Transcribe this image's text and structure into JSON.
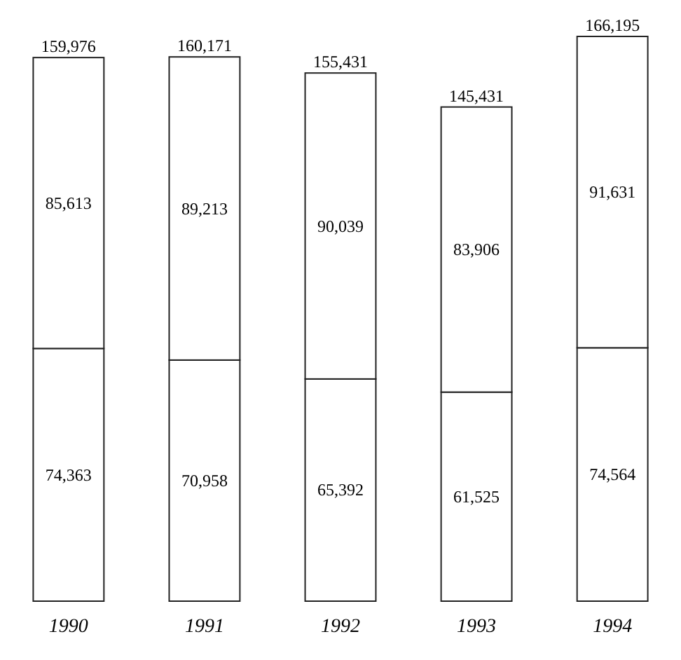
{
  "chart_data": {
    "type": "bar",
    "stacked": true,
    "categories": [
      "1990",
      "1991",
      "1992",
      "1993",
      "1994"
    ],
    "tick_labels": "x",
    "series": [
      {
        "color": "#ffffff",
        "values": [
          74363,
          70958,
          65392,
          61525,
          74564
        ],
        "value_labels": [
          "74,363",
          "70,958",
          "65,392",
          "61,525",
          "74,564"
        ]
      },
      {
        "color": "#ffffff",
        "values": [
          85613,
          89213,
          90039,
          83906,
          91631
        ],
        "value_labels": [
          "85,613",
          "89,213",
          "90,039",
          "83,906",
          "91,631"
        ]
      }
    ],
    "totals": [
      "159,976",
      "160,171",
      "155,431",
      "145,431",
      "166,195"
    ]
  }
}
